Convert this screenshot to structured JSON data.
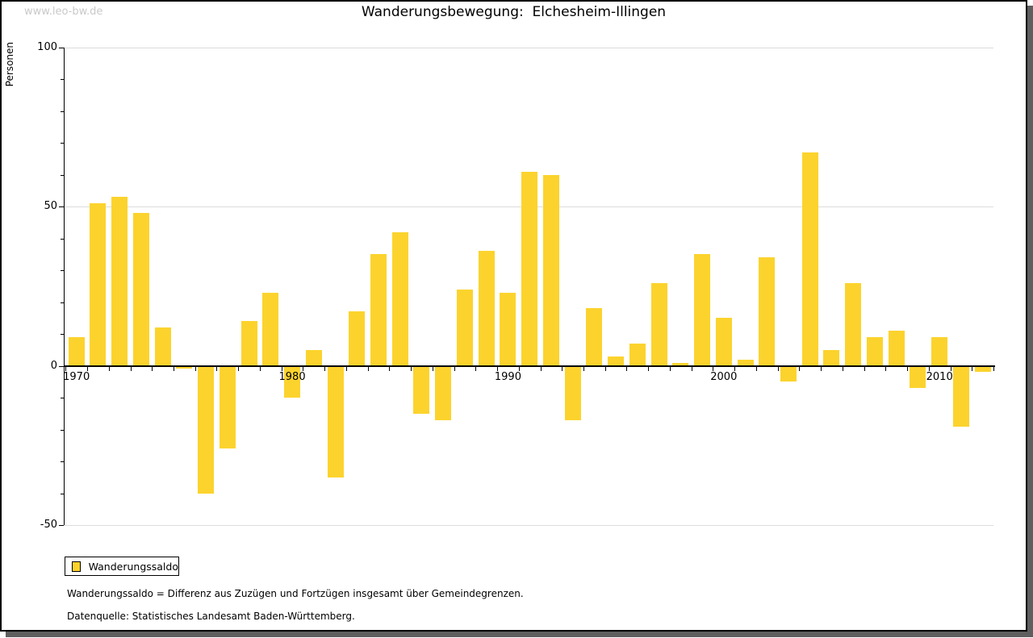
{
  "watermark": "www.leo-bw.de",
  "title": "Wanderungsbewegung:  Elchesheim-Illingen",
  "y_axis_label": "Personen",
  "legend": {
    "label": "Wanderungssaldo"
  },
  "footnotes": [
    "Wanderungssaldo = Differenz aus Zuzügen und Fortzügen insgesamt über Gemeindegrenzen.",
    "Datenquelle: Statistisches Landesamt Baden-Württemberg."
  ],
  "colors": {
    "bar": "#FCD32D",
    "grid": "#DCDCDC",
    "axis": "#000000",
    "watermark": "#C9C9C9",
    "shadow": "#5F5F5F",
    "background": "#FFFFFF"
  },
  "chart_data": {
    "type": "bar",
    "title": "Wanderungsbewegung: Elchesheim-Illingen",
    "xlabel": "",
    "ylabel": "Personen",
    "series_name": "Wanderungssaldo",
    "x": [
      1970,
      1971,
      1972,
      1973,
      1974,
      1975,
      1976,
      1977,
      1978,
      1979,
      1980,
      1981,
      1982,
      1983,
      1984,
      1985,
      1986,
      1987,
      1988,
      1989,
      1990,
      1991,
      1992,
      1993,
      1994,
      1995,
      1996,
      1997,
      1998,
      1999,
      2000,
      2001,
      2002,
      2003,
      2004,
      2005,
      2006,
      2007,
      2008,
      2009,
      2010,
      2011,
      2012
    ],
    "values": [
      9,
      51,
      53,
      48,
      12,
      -1,
      -40,
      -26,
      14,
      23,
      -10,
      5,
      -35,
      17,
      35,
      42,
      -15,
      -17,
      24,
      36,
      23,
      61,
      60,
      -17,
      18,
      3,
      7,
      26,
      1,
      35,
      15,
      2,
      34,
      -5,
      67,
      5,
      26,
      9,
      11,
      -7,
      9,
      -19,
      -2
    ],
    "ylim": [
      -50,
      100
    ],
    "y_major_ticks": [
      100,
      50,
      0,
      -50
    ],
    "y_minor_step": 10,
    "x_labeled_ticks": [
      1970,
      1980,
      1990,
      2000,
      2010
    ],
    "bar_color": "#FCD32D",
    "grid": "horizontal",
    "legend_position": "bottom-left"
  }
}
